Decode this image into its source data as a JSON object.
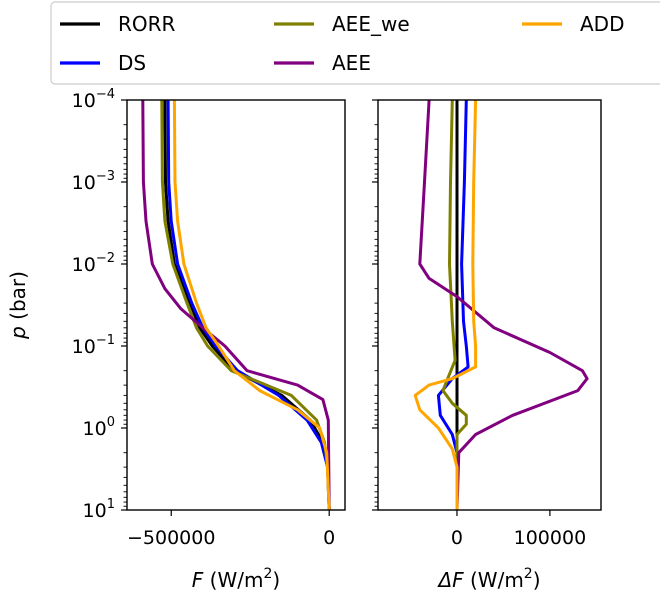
{
  "chart_data": {
    "type": "line",
    "legend": {
      "placement": "top",
      "columns": 3,
      "entries": [
        {
          "label": "RORR",
          "color": "#000000"
        },
        {
          "label": "DS",
          "color": "#0000ff"
        },
        {
          "label": "AEE_we",
          "color": "#808000"
        },
        {
          "label": "AEE",
          "color": "#800080"
        },
        {
          "label": "ADD",
          "color": "#ffa500"
        }
      ]
    },
    "y_axis": {
      "label": "p (bar)",
      "scale": "log",
      "lim": [
        10,
        0.0001
      ],
      "ticks": [
        {
          "base": "10",
          "exp": "−4",
          "value": 0.0001
        },
        {
          "base": "10",
          "exp": "−3",
          "value": 0.001
        },
        {
          "base": "10",
          "exp": "−2",
          "value": 0.01
        },
        {
          "base": "10",
          "exp": "−1",
          "value": 0.1
        },
        {
          "base": "10",
          "exp": "0",
          "value": 1
        },
        {
          "base": "10",
          "exp": "1",
          "value": 10
        }
      ]
    },
    "panels": [
      {
        "id": "F",
        "xlabel": {
          "var": "F",
          "unit_pre": " (W/m",
          "unit_sup": "2",
          "unit_post": ")"
        },
        "xlim": [
          -640000,
          50000
        ],
        "xticks": [
          {
            "label": "−500000",
            "value": -500000
          },
          {
            "label": "0",
            "value": 0
          }
        ],
        "series": [
          {
            "name": "RORR",
            "color": "#000000",
            "points": [
              [
                -520000,
                0.0001
              ],
              [
                -518000,
                0.001
              ],
              [
                -510000,
                0.003
              ],
              [
                -490000,
                0.01
              ],
              [
                -440000,
                0.03
              ],
              [
                -410000,
                0.06
              ],
              [
                -370000,
                0.1
              ],
              [
                -300000,
                0.2
              ],
              [
                -150000,
                0.4
              ],
              [
                -60000,
                0.8
              ],
              [
                -20000,
                1.5
              ],
              [
                -5000,
                3
              ],
              [
                0,
                10
              ]
            ]
          },
          {
            "name": "DS",
            "color": "#0000ff",
            "points": [
              [
                -510000,
                0.0001
              ],
              [
                -508000,
                0.001
              ],
              [
                -500000,
                0.003
              ],
              [
                -480000,
                0.01
              ],
              [
                -435000,
                0.03
              ],
              [
                -400000,
                0.06
              ],
              [
                -360000,
                0.1
              ],
              [
                -290000,
                0.2
              ],
              [
                -160000,
                0.4
              ],
              [
                -70000,
                0.8
              ],
              [
                -25000,
                1.5
              ],
              [
                -5000,
                3
              ],
              [
                0,
                10
              ]
            ]
          },
          {
            "name": "AEE_we",
            "color": "#808000",
            "points": [
              [
                -530000,
                0.0001
              ],
              [
                -528000,
                0.001
              ],
              [
                -520000,
                0.003
              ],
              [
                -495000,
                0.01
              ],
              [
                -450000,
                0.03
              ],
              [
                -420000,
                0.06
              ],
              [
                -385000,
                0.1
              ],
              [
                -310000,
                0.2
              ],
              [
                -120000,
                0.4
              ],
              [
                -40000,
                0.8
              ],
              [
                -15000,
                1.5
              ],
              [
                -5000,
                3
              ],
              [
                0,
                10
              ]
            ]
          },
          {
            "name": "AEE",
            "color": "#800080",
            "points": [
              [
                -590000,
                0.0001
              ],
              [
                -588000,
                0.001
              ],
              [
                -580000,
                0.003
              ],
              [
                -560000,
                0.01
              ],
              [
                -520000,
                0.02
              ],
              [
                -470000,
                0.035
              ],
              [
                -400000,
                0.06
              ],
              [
                -330000,
                0.1
              ],
              [
                -260000,
                0.2
              ],
              [
                -100000,
                0.3
              ],
              [
                -20000,
                0.45
              ],
              [
                -3000,
                0.8
              ],
              [
                0,
                10
              ]
            ]
          },
          {
            "name": "ADD",
            "color": "#ffa500",
            "points": [
              [
                -490000,
                0.0001
              ],
              [
                -488000,
                0.001
              ],
              [
                -480000,
                0.003
              ],
              [
                -460000,
                0.01
              ],
              [
                -420000,
                0.03
              ],
              [
                -390000,
                0.06
              ],
              [
                -350000,
                0.1
              ],
              [
                -300000,
                0.2
              ],
              [
                -220000,
                0.35
              ],
              [
                -100000,
                0.6
              ],
              [
                -30000,
                1.0
              ],
              [
                -8000,
                2
              ],
              [
                0,
                10
              ]
            ]
          }
        ]
      },
      {
        "id": "dF",
        "xlabel": {
          "var": "ΔF",
          "unit_pre": " (W/m",
          "unit_sup": "2",
          "unit_post": ")"
        },
        "xlim": [
          -85000,
          155000
        ],
        "xticks": [
          {
            "label": "0",
            "value": 0
          },
          {
            "label": "100000",
            "value": 100000
          }
        ],
        "series": [
          {
            "name": "RORR",
            "color": "#000000",
            "points": [
              [
                0,
                0.0001
              ],
              [
                0,
                10
              ]
            ]
          },
          {
            "name": "DS",
            "color": "#0000ff",
            "points": [
              [
                10000,
                0.0001
              ],
              [
                8000,
                0.001
              ],
              [
                5000,
                0.01
              ],
              [
                7000,
                0.05
              ],
              [
                10000,
                0.1
              ],
              [
                12000,
                0.18
              ],
              [
                -5000,
                0.25
              ],
              [
                -20000,
                0.4
              ],
              [
                -18000,
                0.7
              ],
              [
                -5000,
                1.2
              ],
              [
                0,
                2
              ],
              [
                0,
                10
              ]
            ]
          },
          {
            "name": "AEE_we",
            "color": "#808000",
            "points": [
              [
                -5000,
                0.0001
              ],
              [
                -7000,
                0.001
              ],
              [
                -8000,
                0.01
              ],
              [
                -5000,
                0.05
              ],
              [
                -2000,
                0.15
              ],
              [
                -10000,
                0.25
              ],
              [
                -15000,
                0.35
              ],
              [
                -5000,
                0.5
              ],
              [
                10000,
                0.7
              ],
              [
                10000,
                0.9
              ],
              [
                0,
                1.2
              ],
              [
                0,
                10
              ]
            ]
          },
          {
            "name": "AEE",
            "color": "#800080",
            "points": [
              [
                -30000,
                0.0001
              ],
              [
                -35000,
                0.001
              ],
              [
                -40000,
                0.01
              ],
              [
                -30000,
                0.015
              ],
              [
                0,
                0.025
              ],
              [
                40000,
                0.06
              ],
              [
                100000,
                0.12
              ],
              [
                135000,
                0.2
              ],
              [
                140000,
                0.25
              ],
              [
                130000,
                0.35
              ],
              [
                60000,
                0.7
              ],
              [
                20000,
                1.2
              ],
              [
                2000,
                2
              ],
              [
                0,
                10
              ]
            ]
          },
          {
            "name": "ADD",
            "color": "#ffa500",
            "points": [
              [
                20000,
                0.0001
              ],
              [
                18000,
                0.001
              ],
              [
                17000,
                0.01
              ],
              [
                18000,
                0.05
              ],
              [
                20000,
                0.1
              ],
              [
                20000,
                0.18
              ],
              [
                -5000,
                0.25
              ],
              [
                -30000,
                0.3
              ],
              [
                -45000,
                0.4
              ],
              [
                -40000,
                0.6
              ],
              [
                -20000,
                1.0
              ],
              [
                -5000,
                1.8
              ],
              [
                0,
                3
              ],
              [
                0,
                10
              ]
            ]
          }
        ]
      }
    ]
  }
}
